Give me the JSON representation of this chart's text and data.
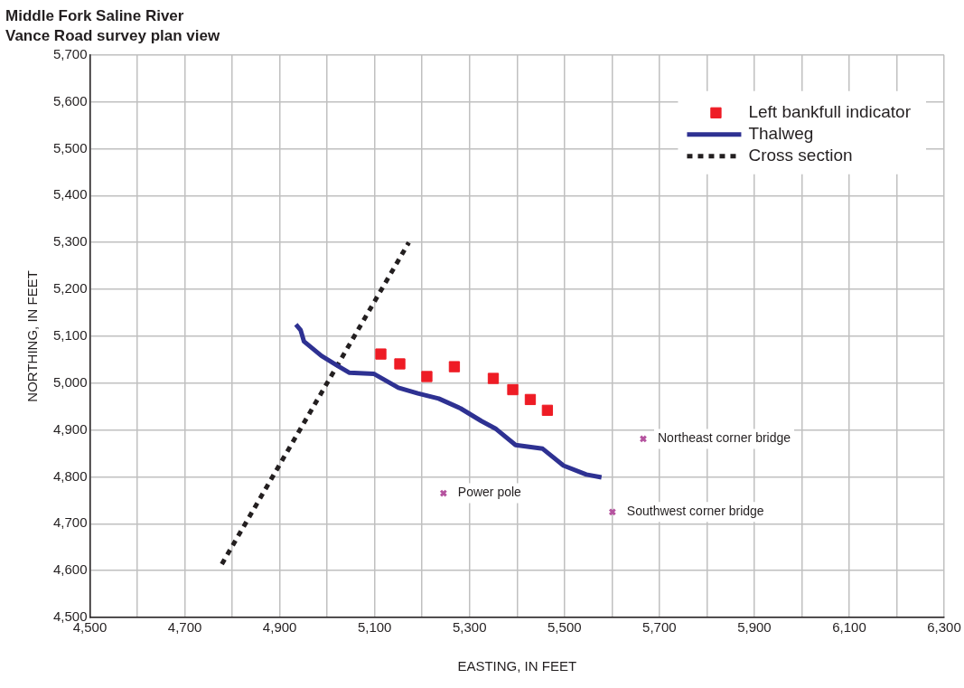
{
  "chart_data": {
    "type": "line",
    "title": "Middle Fork Saline River",
    "subtitle": "Vance Road survey plan view",
    "xlabel": "EASTING, IN FEET",
    "ylabel": "NORTHING, IN FEET",
    "xlim": [
      4500,
      6300
    ],
    "ylim": [
      4500,
      5700
    ],
    "xticks": [
      {
        "value": 4500,
        "label": "4,500"
      },
      {
        "value": 4600,
        "label": null
      },
      {
        "value": 4700,
        "label": "4,700"
      },
      {
        "value": 4800,
        "label": null
      },
      {
        "value": 4900,
        "label": "4,900"
      },
      {
        "value": 5000,
        "label": null
      },
      {
        "value": 5100,
        "label": "5,100"
      },
      {
        "value": 5200,
        "label": null
      },
      {
        "value": 5300,
        "label": "5,300"
      },
      {
        "value": 5400,
        "label": null
      },
      {
        "value": 5500,
        "label": "5,500"
      },
      {
        "value": 5600,
        "label": null
      },
      {
        "value": 5700,
        "label": "5,700"
      },
      {
        "value": 5800,
        "label": null
      },
      {
        "value": 5900,
        "label": "5,900"
      },
      {
        "value": 6000,
        "label": null
      },
      {
        "value": 6100,
        "label": "6,100"
      },
      {
        "value": 6200,
        "label": null
      },
      {
        "value": 6300,
        "label": "6,300"
      }
    ],
    "yticks": [
      {
        "value": 4500,
        "label": "4,500"
      },
      {
        "value": 4600,
        "label": "4,600"
      },
      {
        "value": 4700,
        "label": "4,700"
      },
      {
        "value": 4800,
        "label": "4,800"
      },
      {
        "value": 4900,
        "label": "4,900"
      },
      {
        "value": 5000,
        "label": "5,000"
      },
      {
        "value": 5100,
        "label": "5,100"
      },
      {
        "value": 5200,
        "label": "5,200"
      },
      {
        "value": 5300,
        "label": "5,300"
      },
      {
        "value": 5400,
        "label": "5,400"
      },
      {
        "value": 5500,
        "label": "5,500"
      },
      {
        "value": 5600,
        "label": "5,600"
      },
      {
        "value": 5700,
        "label": "5,700"
      }
    ],
    "grid": true,
    "legend": "top right",
    "series": [
      {
        "name": "Left bankfull indicator",
        "type": "scatter",
        "marker": "square",
        "color": "#ee1c25",
        "x": [
          5113,
          5153,
          5210,
          5268,
          5350,
          5391,
          5428,
          5464
        ],
        "values": [
          5062,
          5041,
          5014,
          5035,
          5010,
          4986,
          4965,
          4942
        ]
      },
      {
        "name": "Thalweg",
        "marker": "none",
        "line_style": "solid",
        "color": "#2e3192",
        "x": [
          4934,
          4944,
          4951,
          4988,
          5022,
          5047,
          5098,
          5150,
          5191,
          5235,
          5281,
          5325,
          5356,
          5397,
          5454,
          5498,
          5546,
          5578
        ],
        "values": [
          5125,
          5113,
          5089,
          5058,
          5037,
          5022,
          5020,
          4990,
          4978,
          4967,
          4946,
          4919,
          4902,
          4868,
          4860,
          4824,
          4805,
          4799
        ]
      },
      {
        "name": "Cross section",
        "marker": "none",
        "line_style": "dotted",
        "color": "#231f20",
        "x": [
          4778,
          5172
        ],
        "values": [
          4614,
          5300
        ]
      },
      {
        "type": "scatter",
        "marker": "cross",
        "color": "#b5539f",
        "x": [
          5245,
          5666,
          5601
        ],
        "values": [
          4765,
          4881,
          4725
        ]
      }
    ],
    "annotations": [
      {
        "text": "Power pole",
        "x": 5245,
        "y": 4765
      },
      {
        "text": "Northeast corner bridge",
        "x": 5666,
        "y": 4881
      },
      {
        "text": "Southwest corner bridge",
        "x": 5601,
        "y": 4725
      }
    ]
  }
}
